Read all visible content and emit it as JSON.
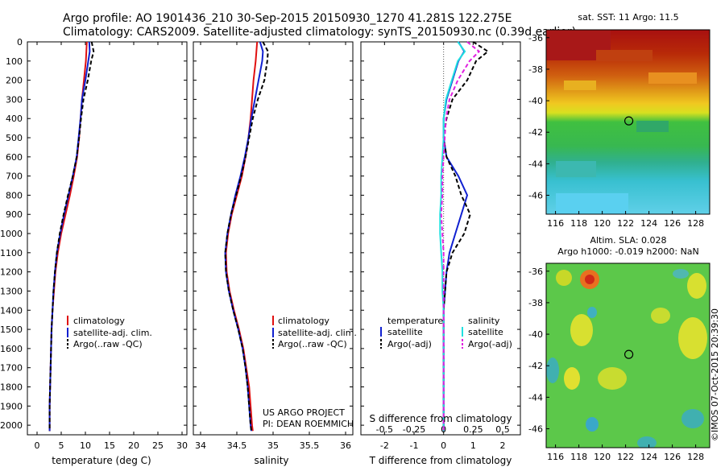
{
  "header": {
    "line1": "Argo profile: AO 1901436_210 30-Sep-2015 20150930_1270 41.281S 122.275E",
    "line2": "Climatology: CARS2009. Satellite-adjusted climatology: synTS_20150930.nc (0.39d earlier)"
  },
  "colors": {
    "climatology": "#e01010",
    "satellite": "#1020d0",
    "argo": "#000000",
    "salinity_satellite": "#20e0e0",
    "salinity_argo": "#e020e0"
  },
  "chart_data": [
    {
      "type": "line",
      "panel": "temperature",
      "xlabel": "temperature (deg C)",
      "xlim": [
        -2,
        31
      ],
      "xticks": [
        "0",
        "5",
        "10",
        "15",
        "20",
        "25",
        "30"
      ],
      "ylim": [
        2050,
        0
      ],
      "yticks": [
        "0",
        "100",
        "200",
        "300",
        "400",
        "500",
        "600",
        "700",
        "800",
        "900",
        "1000",
        "1100",
        "1200",
        "1300",
        "1400",
        "1500",
        "1600",
        "1700",
        "1800",
        "1900",
        "2000"
      ],
      "legend": [
        "climatology",
        "satellite-adj. clim.",
        "Argo(..raw -QC)"
      ],
      "depth": [
        0,
        50,
        100,
        200,
        300,
        400,
        500,
        600,
        700,
        800,
        900,
        1000,
        1100,
        1200,
        1300,
        1400,
        1500,
        1600,
        1700,
        1800,
        1900,
        2000,
        2030
      ],
      "series": [
        {
          "name": "climatology",
          "values": [
            10.3,
            10.2,
            10.1,
            9.7,
            9.3,
            9.0,
            8.7,
            8.3,
            7.6,
            6.8,
            5.9,
            5.0,
            4.3,
            3.8,
            3.5,
            3.2,
            3.0,
            2.9,
            2.8,
            2.7,
            2.6,
            2.6,
            2.6
          ]
        },
        {
          "name": "satellite-adj. clim.",
          "values": [
            10.8,
            10.9,
            10.6,
            10.0,
            9.3,
            9.0,
            8.6,
            8.2,
            7.4,
            6.5,
            5.6,
            4.8,
            4.1,
            3.7,
            3.4,
            3.2,
            3.0,
            2.9,
            2.8,
            2.7,
            2.6,
            2.6,
            2.6
          ]
        },
        {
          "name": "Argo(..raw -QC)",
          "values": [
            11.3,
            11.7,
            11.2,
            10.5,
            9.6,
            9.1,
            8.7,
            8.2,
            7.4,
            6.4,
            5.5,
            4.7,
            4.1,
            3.7,
            3.4,
            3.2,
            3.0,
            2.9,
            2.8,
            2.7,
            2.6,
            2.6,
            2.6
          ]
        }
      ]
    },
    {
      "type": "line",
      "panel": "salinity",
      "xlabel": "salinity",
      "xlim": [
        33.9,
        36.1
      ],
      "xticks": [
        "34",
        "34.5",
        "35",
        "35.5",
        "36"
      ],
      "ylim": [
        2050,
        0
      ],
      "legend": [
        "climatology",
        "satellite-adj. clim.",
        "Argo(..raw -QC)"
      ],
      "annotation": [
        "US ARGO PROJECT",
        "PI: DEAN ROEMMICH"
      ],
      "depth": [
        0,
        50,
        100,
        200,
        300,
        400,
        500,
        600,
        700,
        800,
        900,
        1000,
        1100,
        1200,
        1300,
        1400,
        1500,
        1600,
        1700,
        1800,
        1900,
        2000,
        2030
      ],
      "series": [
        {
          "name": "climatology",
          "values": [
            34.78,
            34.77,
            34.76,
            34.73,
            34.71,
            34.69,
            34.66,
            34.62,
            34.57,
            34.5,
            34.43,
            34.38,
            34.35,
            34.36,
            34.4,
            34.46,
            34.53,
            34.59,
            34.63,
            34.67,
            34.69,
            34.71,
            34.72
          ]
        },
        {
          "name": "satellite-adj. clim.",
          "values": [
            34.82,
            34.86,
            34.85,
            34.8,
            34.75,
            34.7,
            34.66,
            34.61,
            34.55,
            34.48,
            34.42,
            34.37,
            34.34,
            34.35,
            34.39,
            34.45,
            34.52,
            34.58,
            34.62,
            34.65,
            34.67,
            34.69,
            34.7
          ]
        },
        {
          "name": "Argo(..raw -QC)",
          "values": [
            34.86,
            34.93,
            34.92,
            34.88,
            34.79,
            34.72,
            34.67,
            34.62,
            34.56,
            34.49,
            34.42,
            34.37,
            34.34,
            34.35,
            34.39,
            34.45,
            34.52,
            34.58,
            34.62,
            34.65,
            34.67,
            34.69,
            34.7
          ]
        }
      ]
    },
    {
      "type": "line",
      "panel": "difference",
      "xlabel": "T difference from climatology",
      "xlabel_top": "S difference from climatology",
      "xlim": [
        -2.8,
        2.6
      ],
      "xticks": [
        "-2",
        "-1",
        "0",
        "1",
        "2"
      ],
      "xticks_top": [
        "-0.5",
        "-0.25",
        "0",
        "0.25",
        "0.5"
      ],
      "ylim": [
        2050,
        0
      ],
      "legend_groups": [
        {
          "title": "temperature",
          "items": [
            "satellite",
            "Argo(-adj)"
          ]
        },
        {
          "title": "salinity",
          "items": [
            "satellite",
            "Argo(-adj)"
          ]
        }
      ],
      "depth": [
        0,
        50,
        100,
        200,
        300,
        400,
        500,
        600,
        700,
        800,
        900,
        1000,
        1100,
        1200,
        1300,
        1400,
        1500,
        1600,
        1700,
        1800,
        1900,
        2000,
        2030
      ],
      "series": [
        {
          "name": "temperature satellite",
          "values": [
            0.5,
            0.7,
            0.5,
            0.3,
            0.1,
            0.0,
            0.0,
            0.1,
            0.5,
            0.8,
            0.6,
            0.4,
            0.2,
            0.1,
            0.05,
            0.0,
            0.0,
            0.0,
            0.0,
            0.0,
            0.0,
            0.0,
            0.0
          ]
        },
        {
          "name": "temperature Argo(-adj)",
          "values": [
            1.0,
            1.5,
            1.1,
            0.8,
            0.3,
            0.1,
            0.0,
            0.1,
            0.4,
            0.6,
            0.9,
            0.7,
            0.3,
            0.1,
            0.05,
            0.0,
            0.0,
            0.0,
            0.0,
            0.0,
            0.0,
            0.0,
            0.0
          ]
        },
        {
          "name": "salinity satellite",
          "values": [
            0.12,
            0.18,
            0.12,
            0.07,
            0.02,
            0.0,
            0.0,
            -0.01,
            -0.02,
            -0.02,
            -0.03,
            -0.03,
            -0.02,
            -0.01,
            -0.01,
            0.0,
            0.0,
            0.0,
            0.0,
            0.0,
            0.0,
            0.0,
            0.0
          ]
        },
        {
          "name": "salinity Argo(-adj)",
          "values": [
            0.2,
            0.3,
            0.22,
            0.12,
            0.05,
            0.02,
            0.01,
            0.0,
            -0.01,
            -0.01,
            -0.02,
            -0.01,
            0.0,
            0.0,
            0.0,
            0.0,
            0.0,
            0.0,
            0.0,
            0.0,
            0.0,
            0.0,
            0.0
          ]
        }
      ]
    },
    {
      "type": "heatmap",
      "panel": "sst_map",
      "title": "sat. SST: 11 Argo: 11.5",
      "xticks": [
        "116",
        "118",
        "120",
        "122",
        "124",
        "126",
        "128"
      ],
      "yticks": [
        "-36",
        "-38",
        "-40",
        "-42",
        "-44",
        "-46"
      ],
      "xlim": [
        115.2,
        129.2
      ],
      "ylim": [
        -47.2,
        -35.5
      ],
      "marker": {
        "lon": 122.275,
        "lat": -41.281
      }
    },
    {
      "type": "heatmap",
      "panel": "sla_map",
      "title_line1": "Altim. SLA: 0.028",
      "title_line2": "Argo h1000: -0.019 h2000: NaN",
      "xticks": [
        "116",
        "118",
        "120",
        "122",
        "124",
        "126",
        "128"
      ],
      "yticks": [
        "-36",
        "-38",
        "-40",
        "-42",
        "-44",
        "-46"
      ],
      "xlim": [
        115.2,
        129.2
      ],
      "ylim": [
        -47.2,
        -35.5
      ],
      "marker": {
        "lon": 122.275,
        "lat": -41.281
      }
    }
  ],
  "footer": {
    "stamp": "©IMOS 07-Oct-2015 20:39:30"
  }
}
